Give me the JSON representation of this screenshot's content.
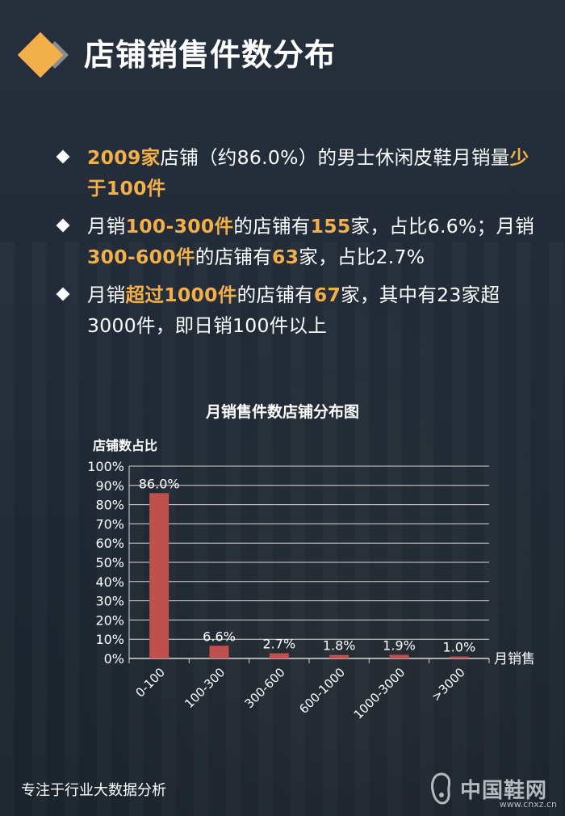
{
  "page": {
    "title": "店铺销售件数分布",
    "footer": "专注于行业大数据分析",
    "brand": {
      "name": "中国鞋网",
      "url": "www.cnxz.cn"
    }
  },
  "bullets": [
    [
      {
        "text": "2009家",
        "hl": true
      },
      {
        "text": "店铺（约86.0%）的男士休闲皮鞋月销量",
        "hl": false
      },
      {
        "text": "少于100件",
        "hl": true
      }
    ],
    [
      {
        "text": "月销",
        "hl": false
      },
      {
        "text": "100-300件",
        "hl": true
      },
      {
        "text": "的店铺有",
        "hl": false
      },
      {
        "text": "155",
        "hl": true
      },
      {
        "text": "家，占比6.6%；月销",
        "hl": false
      },
      {
        "text": "300-600件",
        "hl": true
      },
      {
        "text": "的店铺有",
        "hl": false
      },
      {
        "text": "63",
        "hl": true
      },
      {
        "text": "家，占比2.7%",
        "hl": false
      }
    ],
    [
      {
        "text": "月销",
        "hl": false
      },
      {
        "text": "超过1000件",
        "hl": true
      },
      {
        "text": "的店铺有",
        "hl": false
      },
      {
        "text": "67",
        "hl": true
      },
      {
        "text": "家，其中有23家超3000件，即日销100件以上",
        "hl": false
      }
    ]
  ],
  "colors": {
    "highlight": "#f3b04a",
    "bar": "#c0504d",
    "gridline": "#d9d9d9",
    "mark_diamond": "#f3b04a",
    "mark_small": "#8c8c8c"
  },
  "chart_data": {
    "type": "bar",
    "title": "月销售件数店铺分布图",
    "ylabel": "店铺数占比",
    "xlabel": "月销售",
    "categories": [
      "0-100",
      "100-300",
      "300-600",
      "600-1000",
      "1000-3000",
      ">3000"
    ],
    "values": [
      86.0,
      6.6,
      2.7,
      1.8,
      1.9,
      1.0
    ],
    "data_labels": [
      "86.0%",
      "6.6%",
      "2.7%",
      "1.8%",
      "1.9%",
      "1.0%"
    ],
    "ylim": [
      0,
      100
    ],
    "y_ticks": [
      "0%",
      "10%",
      "20%",
      "30%",
      "40%",
      "50%",
      "60%",
      "70%",
      "80%",
      "90%",
      "100%"
    ],
    "grid": true,
    "legend": "none"
  }
}
